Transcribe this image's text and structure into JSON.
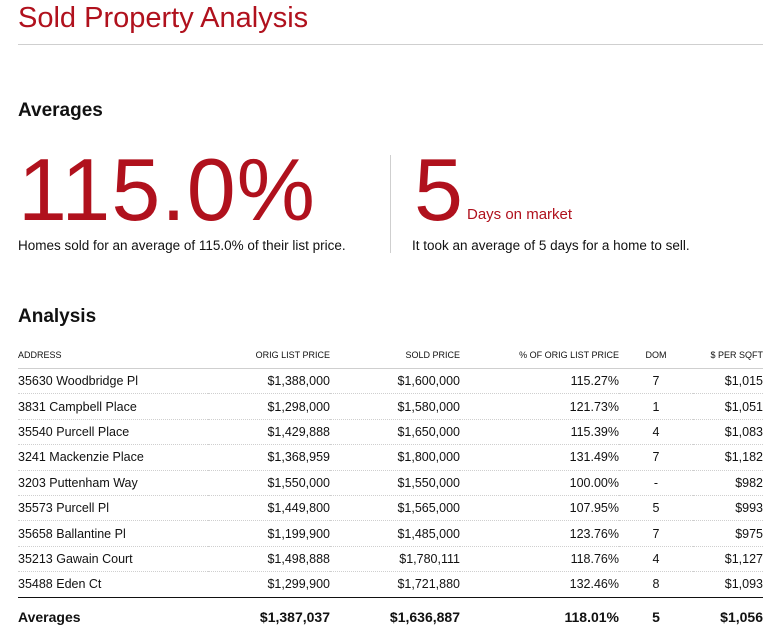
{
  "title": "Sold Property Analysis",
  "averages_section": {
    "heading": "Averages",
    "list_price_pct": {
      "value": "115.0%",
      "description": "Homes sold for an average of 115.0% of their list price."
    },
    "days_on_market": {
      "value": "5",
      "unit": "Days on market",
      "description": "It took an average of 5 days for a home to sell."
    }
  },
  "analysis_section": {
    "heading": "Analysis",
    "columns": [
      "ADDRESS",
      "ORIG LIST PRICE",
      "SOLD PRICE",
      "% OF ORIG LIST PRICE",
      "DOM",
      "$ PER SQFT"
    ],
    "rows": [
      {
        "address": "35630 Woodbridge Pl",
        "orig_list_price": "$1,388,000",
        "sold_price": "$1,600,000",
        "pct_of_orig": "115.27%",
        "dom": "7",
        "per_sqft": "$1,015"
      },
      {
        "address": "3831 Campbell Place",
        "orig_list_price": "$1,298,000",
        "sold_price": "$1,580,000",
        "pct_of_orig": "121.73%",
        "dom": "1",
        "per_sqft": "$1,051"
      },
      {
        "address": "35540 Purcell Place",
        "orig_list_price": "$1,429,888",
        "sold_price": "$1,650,000",
        "pct_of_orig": "115.39%",
        "dom": "4",
        "per_sqft": "$1,083"
      },
      {
        "address": "3241 Mackenzie Place",
        "orig_list_price": "$1,368,959",
        "sold_price": "$1,800,000",
        "pct_of_orig": "131.49%",
        "dom": "7",
        "per_sqft": "$1,182"
      },
      {
        "address": "3203 Puttenham Way",
        "orig_list_price": "$1,550,000",
        "sold_price": "$1,550,000",
        "pct_of_orig": "100.00%",
        "dom": "-",
        "per_sqft": "$982"
      },
      {
        "address": "35573 Purcell Pl",
        "orig_list_price": "$1,449,800",
        "sold_price": "$1,565,000",
        "pct_of_orig": "107.95%",
        "dom": "5",
        "per_sqft": "$993"
      },
      {
        "address": "35658 Ballantine Pl",
        "orig_list_price": "$1,199,900",
        "sold_price": "$1,485,000",
        "pct_of_orig": "123.76%",
        "dom": "7",
        "per_sqft": "$975"
      },
      {
        "address": "35213 Gawain Court",
        "orig_list_price": "$1,498,888",
        "sold_price": "$1,780,111",
        "pct_of_orig": "118.76%",
        "dom": "4",
        "per_sqft": "$1,127"
      },
      {
        "address": "35488 Eden Ct",
        "orig_list_price": "$1,299,900",
        "sold_price": "$1,721,880",
        "pct_of_orig": "132.46%",
        "dom": "8",
        "per_sqft": "$1,093"
      }
    ],
    "averages_row": {
      "label": "Averages",
      "orig_list_price": "$1,387,037",
      "sold_price": "$1,636,887",
      "pct_of_orig": "118.01%",
      "dom": "5",
      "per_sqft": "$1,056"
    }
  },
  "colors": {
    "accent": "#b0111d",
    "text": "#111111",
    "rule": "#cfcfcf"
  }
}
